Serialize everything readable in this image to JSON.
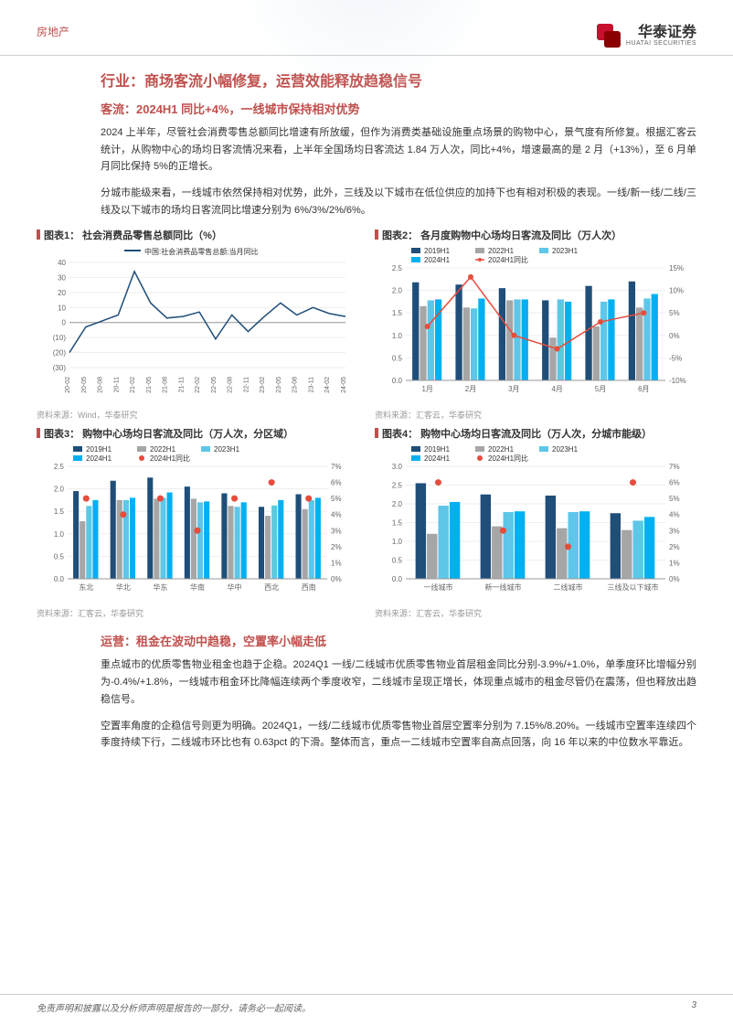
{
  "header": {
    "category": "房地产",
    "company_cn": "华泰证券",
    "company_en": "HUATAI SECURITIES"
  },
  "section1": {
    "title": "行业：商场客流小幅修复，运营效能释放趋稳信号",
    "subtitle": "客流：2024H1 同比+4%，一线城市保持相对优势",
    "para1": "2024 上半年，尽管社会消费零售总额同比增速有所放缓，但作为消费类基础设施重点场景的购物中心，景气度有所修复。根据汇客云统计，从购物中心的场均日客流情况来看，上半年全国场均日客流达 1.84 万人次，同比+4%，增速最高的是 2 月（+13%），至 6 月单月同比保持 5%的正增长。",
    "para2": "分城市能级来看，一线城市依然保持相对优势，此外，三线及以下城市在低位供应的加持下也有相对积极的表现。一线/新一线/二线/三线及以下城市的场均日客流同比增速分别为 6%/3%/2%/6%。"
  },
  "chart1": {
    "title": "图表1： 社会消费品零售总额同比（%）",
    "type": "line",
    "legend": "中国:社会消费品零售总额:当月同比",
    "x_labels": [
      "20-02",
      "20-05",
      "20-08",
      "20-11",
      "21-02",
      "21-05",
      "21-08",
      "21-11",
      "22-02",
      "22-05",
      "22-08",
      "22-11",
      "23-02",
      "23-05",
      "23-08",
      "23-11",
      "24-02",
      "24-05"
    ],
    "y_ticks": [
      -30,
      -20,
      -10,
      0,
      10,
      20,
      30,
      40
    ],
    "ylim": [
      -30,
      40
    ],
    "values": [
      -20,
      -3,
      1,
      5,
      34,
      13,
      3,
      4,
      7,
      -11,
      5,
      -6,
      4,
      13,
      5,
      10,
      6,
      4
    ],
    "line_color": "#1f4e79",
    "grid_color": "#e8e8e8",
    "src": "资料来源：Wind，华泰研究"
  },
  "chart2": {
    "title": "图表2： 各月度购物中心场均日客流及同比（万人次）",
    "type": "bar_line",
    "x_labels": [
      "1月",
      "2月",
      "3月",
      "4月",
      "5月",
      "6月"
    ],
    "y1_ticks": [
      0,
      0.5,
      1.0,
      1.5,
      2.0,
      2.5
    ],
    "y1_lim": [
      0,
      2.5
    ],
    "y2_ticks": [
      -10,
      -5,
      0,
      5,
      10,
      15
    ],
    "y2_lim": [
      -10,
      15
    ],
    "series": [
      {
        "name": "2019H1",
        "color": "#1f4e79",
        "values": [
          2.18,
          2.13,
          2.05,
          1.78,
          2.1,
          2.2
        ]
      },
      {
        "name": "2022H1",
        "color": "#a6a6a6",
        "values": [
          1.65,
          1.62,
          1.78,
          0.95,
          1.2,
          1.62
        ]
      },
      {
        "name": "2023H1",
        "color": "#5ec6e8",
        "values": [
          1.78,
          1.6,
          1.8,
          1.8,
          1.75,
          1.82
        ]
      },
      {
        "name": "2024H1",
        "color": "#00b0f0",
        "values": [
          1.8,
          1.82,
          1.8,
          1.75,
          1.8,
          1.92
        ]
      }
    ],
    "line_series": {
      "name": "2024H1同比",
      "color": "#e74c3c",
      "values": [
        2,
        13,
        0,
        -3,
        3,
        5
      ]
    },
    "src": "资料来源：汇客云，华泰研究"
  },
  "chart3": {
    "title": "图表3： 购物中心场均日客流及同比（万人次，分区域）",
    "type": "bar_scatter",
    "x_labels": [
      "东北",
      "华北",
      "华东",
      "华南",
      "华中",
      "西北",
      "西南"
    ],
    "y1_ticks": [
      0,
      0.5,
      1.0,
      1.5,
      2.0,
      2.5
    ],
    "y1_lim": [
      0,
      2.5
    ],
    "y2_ticks": [
      0,
      1,
      2,
      3,
      4,
      5,
      6,
      7
    ],
    "y2_lim": [
      0,
      7
    ],
    "series": [
      {
        "name": "2019H1",
        "color": "#1f4e79",
        "values": [
          1.95,
          2.18,
          2.25,
          2.05,
          1.9,
          1.6,
          1.88
        ]
      },
      {
        "name": "2022H1",
        "color": "#a6a6a6",
        "values": [
          1.28,
          1.75,
          1.78,
          1.78,
          1.62,
          1.4,
          1.55
        ]
      },
      {
        "name": "2023H1",
        "color": "#5ec6e8",
        "values": [
          1.62,
          1.75,
          1.8,
          1.7,
          1.6,
          1.63,
          1.75
        ]
      },
      {
        "name": "2024H1",
        "color": "#00b0f0",
        "values": [
          1.75,
          1.8,
          1.92,
          1.72,
          1.7,
          1.75,
          1.8
        ]
      }
    ],
    "scatter_series": {
      "name": "2024H1同比",
      "color": "#e74c3c",
      "values": [
        5,
        4,
        5,
        3,
        5,
        6,
        5
      ]
    },
    "src": "资料来源：汇客云，华泰研究"
  },
  "chart4": {
    "title": "图表4： 购物中心场均日客流及同比（万人次，分城市能级）",
    "type": "bar_scatter",
    "x_labels": [
      "一线城市",
      "新一线城市",
      "二线城市",
      "三线及以下城市"
    ],
    "y1_ticks": [
      0,
      0.5,
      1.0,
      1.5,
      2.0,
      2.5,
      3.0
    ],
    "y1_lim": [
      0,
      3.0
    ],
    "y2_ticks": [
      0,
      1,
      2,
      3,
      4,
      5,
      6,
      7
    ],
    "y2_lim": [
      0,
      7
    ],
    "series": [
      {
        "name": "2019H1",
        "color": "#1f4e79",
        "values": [
          2.55,
          2.25,
          2.22,
          1.75
        ]
      },
      {
        "name": "2022H1",
        "color": "#a6a6a6",
        "values": [
          1.2,
          1.4,
          1.35,
          1.3
        ]
      },
      {
        "name": "2023H1",
        "color": "#5ec6e8",
        "values": [
          1.95,
          1.78,
          1.78,
          1.55
        ]
      },
      {
        "name": "2024H1",
        "color": "#00b0f0",
        "values": [
          2.05,
          1.8,
          1.8,
          1.65
        ]
      }
    ],
    "scatter_series": {
      "name": "2024H1同比",
      "color": "#e74c3c",
      "values": [
        6,
        3,
        2,
        6
      ]
    },
    "src": "资料来源：汇客云，华泰研究"
  },
  "section2": {
    "subtitle": "运营：租金在波动中趋稳，空置率小幅走低",
    "para1": "重点城市的优质零售物业租金也趋于企稳。2024Q1 一线/二线城市优质零售物业首层租金同比分别-3.9%/+1.0%，单季度环比增幅分别为-0.4%/+1.8%，一线城市租金环比降幅连续两个季度收窄，二线城市呈现正增长，体现重点城市的租金尽管仍在震荡，但也释放出趋稳信号。",
    "para2": "空置率角度的企稳信号则更为明确。2024Q1，一线/二线城市优质零售物业首层空置率分别为 7.15%/8.20%。一线城市空置率连续四个季度持续下行，二线城市环比也有 0.63pct 的下滑。整体而言，重点一二线城市空置率自高点回落，向 16 年以来的中位数水平靠近。"
  },
  "footer": {
    "disclaimer": "免责声明和披露以及分析师声明是报告的一部分，请务必一起阅读。",
    "page": "3"
  },
  "colors": {
    "brand_red": "#c0504d",
    "text": "#333333",
    "muted": "#999999"
  }
}
